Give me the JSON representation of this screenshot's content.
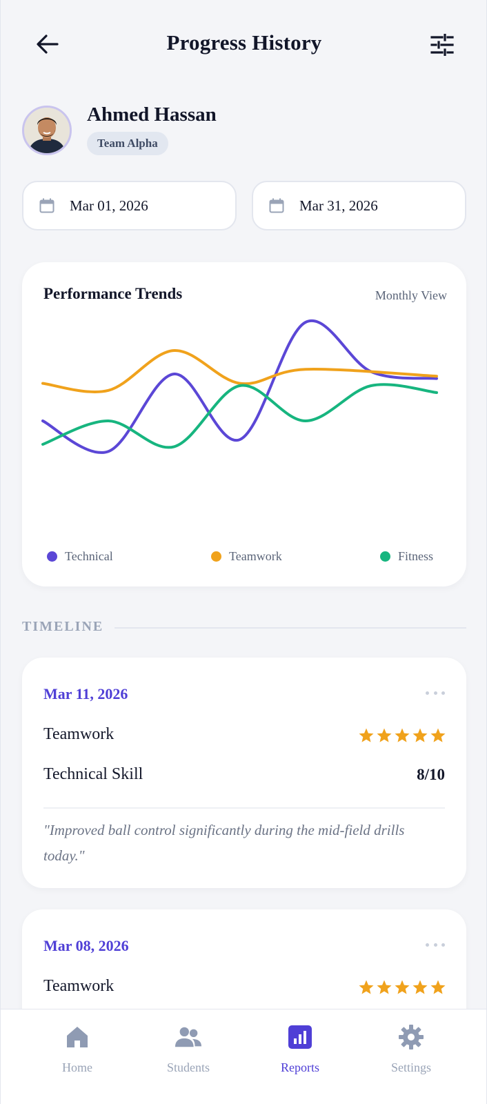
{
  "header": {
    "title": "Progress History",
    "back_icon": "arrow-left-icon",
    "filter_icon": "sliders-icon"
  },
  "profile": {
    "name": "Ahmed Hassan",
    "team": "Team Alpha"
  },
  "date_range": {
    "start": "Mar 01, 2026",
    "end": "Mar 31, 2026",
    "icon": "calendar-icon"
  },
  "trends": {
    "title": "Performance Trends",
    "view": "Monthly View",
    "colors": {
      "Technical": "#5b47d6",
      "Teamwork": "#f0a21c",
      "Fitness": "#17b57f"
    }
  },
  "chart_data": {
    "type": "line",
    "title": "Performance Trends",
    "xlabel": "",
    "ylabel": "",
    "x": [
      1,
      2,
      3,
      4,
      5,
      6,
      7
    ],
    "ylim": [
      0,
      10
    ],
    "series": [
      {
        "name": "Technical",
        "values": [
          5.0,
          3.7,
          7.0,
          4.2,
          9.2,
          7.1,
          null
        ]
      },
      {
        "name": "Teamwork",
        "values": [
          6.6,
          6.3,
          8.0,
          6.6,
          7.2,
          null,
          null
        ]
      },
      {
        "name": "Fitness",
        "values": [
          4.0,
          5.0,
          3.9,
          6.5,
          5.0,
          6.5,
          null
        ]
      }
    ],
    "legend": "bottom",
    "grid": false
  },
  "timeline": {
    "label": "TIMELINE",
    "entries": [
      {
        "date": "Mar 11, 2026",
        "metrics": [
          {
            "name": "Teamwork",
            "type": "stars",
            "rating": 5,
            "max": 5
          },
          {
            "name": "Technical Skill",
            "type": "score",
            "value": "8/10"
          }
        ],
        "note": "\"Improved ball control significantly during the mid-field drills today.\""
      },
      {
        "date": "Mar 08, 2026",
        "metrics": [
          {
            "name": "Teamwork",
            "type": "stars",
            "rating": 5,
            "max": 5
          }
        ]
      }
    ]
  },
  "nav": {
    "items": [
      {
        "label": "Home",
        "icon": "home-icon",
        "active": false
      },
      {
        "label": "Students",
        "icon": "users-icon",
        "active": false
      },
      {
        "label": "Reports",
        "icon": "bar-chart-icon",
        "active": true
      },
      {
        "label": "Settings",
        "icon": "gear-icon",
        "active": false
      }
    ]
  }
}
